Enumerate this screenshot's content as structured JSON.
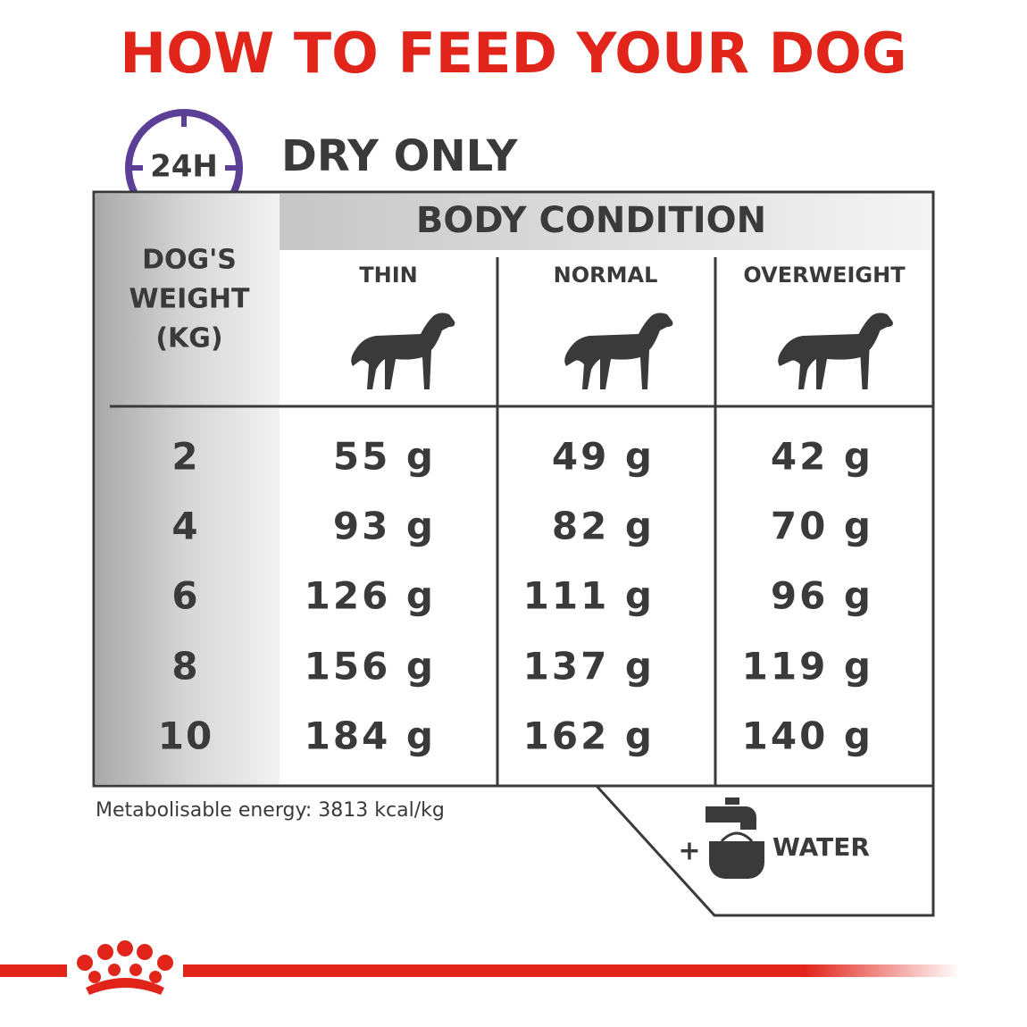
{
  "header": {
    "title": "HOW TO FEED YOUR DOG",
    "clock_label": "24H",
    "subtitle": "DRY ONLY"
  },
  "table": {
    "group_header": "BODY CONDITION",
    "row_header": [
      "DOG'S",
      "WEIGHT",
      "(KG)"
    ],
    "columns": [
      "THIN",
      "NORMAL",
      "OVERWEIGHT"
    ],
    "rows": [
      [
        "2",
        "55 g",
        "49 g",
        "42 g"
      ],
      [
        "4",
        "93 g",
        "82 g",
        "70 g"
      ],
      [
        "6",
        "126 g",
        "111 g",
        "96 g"
      ],
      [
        "8",
        "156 g",
        "137 g",
        "119 g"
      ],
      [
        "10",
        "184 g",
        "162 g",
        "140 g"
      ]
    ]
  },
  "footnote": "Metabolisable energy: 3813 kcal/kg",
  "water": {
    "plus": "+",
    "label": "WATER"
  }
}
